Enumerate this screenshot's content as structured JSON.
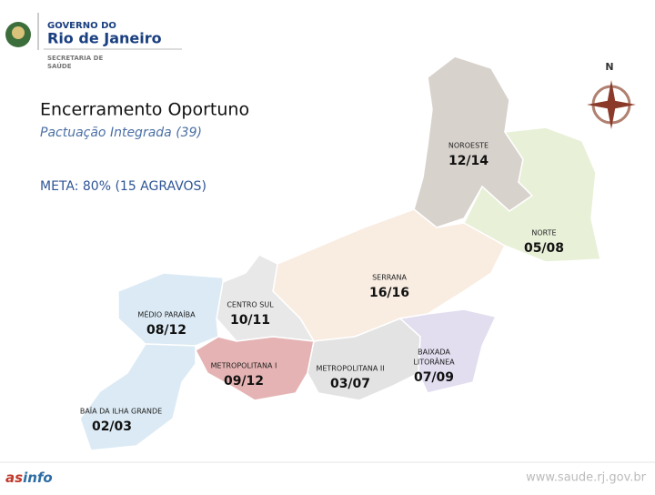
{
  "logo": {
    "lines": [
      "GOVERNO DO",
      "Rio de Janeiro"
    ],
    "dept_lines": [
      "SECRETARIA DE",
      "SAÚDE"
    ]
  },
  "compass": "N",
  "title": "Encerramento Oportuno",
  "subtitle": "Pactuação Integrada (39)",
  "goal": "META: 80% (15 AGRAVOS)",
  "regions": [
    {
      "label_lines": [
        "NOROESTE"
      ],
      "score": "12/14"
    },
    {
      "label_lines": [
        "NORTE"
      ],
      "score": "05/08"
    },
    {
      "label_lines": [
        "SERRANA"
      ],
      "score": "16/16"
    },
    {
      "label_lines": [
        "CENTRO SUL"
      ],
      "score": "10/11"
    },
    {
      "label_lines": [
        "MÉDIO PARAÍBA"
      ],
      "score": "08/12"
    },
    {
      "label_lines": [
        "METROPOLITANA I"
      ],
      "score": "09/12"
    },
    {
      "label_lines": [
        "METROPOLITANA II"
      ],
      "score": "03/07"
    },
    {
      "label_lines": [
        "BAIXADA",
        "LITORÂNEA"
      ],
      "score": "07/09"
    },
    {
      "label_lines": [
        "BAÍA DA ILHA GRANDE"
      ],
      "score": "02/03"
    }
  ],
  "footer": {
    "brand": [
      "as",
      "info"
    ],
    "url": "www.saude.rj.gov.br"
  }
}
